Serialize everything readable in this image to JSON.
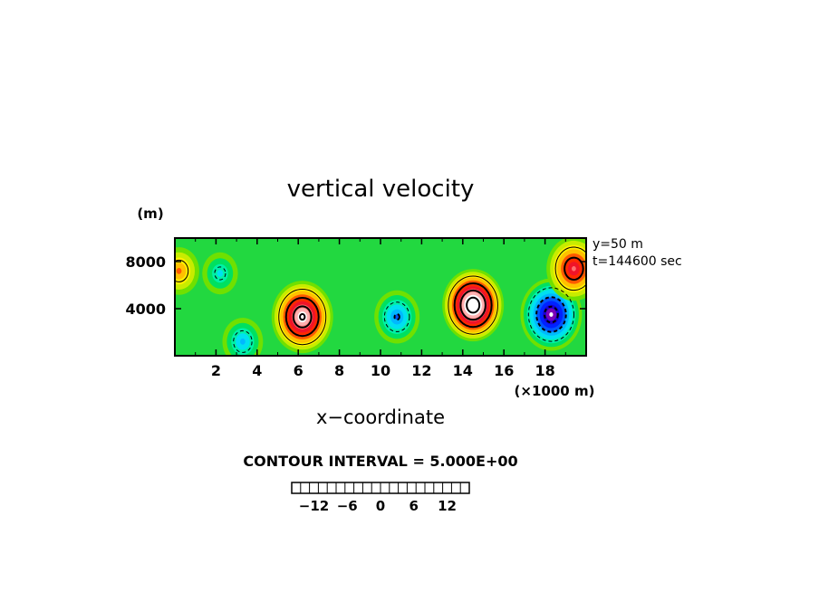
{
  "chart_data": {
    "type": "heatmap",
    "title": "vertical velocity",
    "xlabel": "x−coordinate",
    "x_unit": "(×1000 m)",
    "y_unit": "(m)",
    "annotations": [
      "y=50 m",
      "t=144600 sec"
    ],
    "contour_interval_label": "CONTOUR INTERVAL = 5.000E+00",
    "xlim": [
      0,
      20
    ],
    "ylim": [
      0,
      10000
    ],
    "x_ticks": [
      2,
      4,
      6,
      8,
      10,
      12,
      14,
      16,
      18
    ],
    "x_tick_labels": [
      "2",
      "4",
      "6",
      "8",
      "10",
      "12",
      "14",
      "16",
      "18"
    ],
    "y_ticks": [
      4000,
      8000
    ],
    "y_tick_labels": [
      "4000",
      "8000"
    ],
    "colorbar": {
      "range": [
        -16,
        16
      ],
      "tick_values": [
        -12,
        -6,
        0,
        6,
        12
      ],
      "tick_labels": [
        "−12",
        "−6",
        "0",
        "6",
        "12"
      ],
      "colors": [
        "#7a00b8",
        "#1a00d4",
        "#0022ff",
        "#0055ff",
        "#0088ff",
        "#00b8ff",
        "#00e0f0",
        "#00f0a8",
        "#00e060",
        "#10d020",
        "#70e000",
        "#c8ec00",
        "#fff000",
        "#ffc000",
        "#ff9000",
        "#ff5a00",
        "#ff2a00",
        "#f01428",
        "#ff7070",
        "#ffb0b0"
      ]
    },
    "features": [
      {
        "label": "updraft",
        "x": 6.2,
        "y": 3300,
        "peak": 20
      },
      {
        "label": "updraft",
        "x": 14.5,
        "y": 4300,
        "peak": 24
      },
      {
        "label": "downdraft",
        "x": 10.8,
        "y": 3300,
        "peak": -10
      },
      {
        "label": "downdraft",
        "x": 18.3,
        "y": 3500,
        "peak": -18
      },
      {
        "label": "downdraft",
        "x": 2.2,
        "y": 7000,
        "peak": -6
      },
      {
        "label": "downdraft",
        "x": 3.3,
        "y": 1200,
        "peak": -8
      },
      {
        "label": "updraft",
        "x": 19.4,
        "y": 7400,
        "peak": 14
      },
      {
        "label": "updraft",
        "x": 0.2,
        "y": 7200,
        "peak": 8
      }
    ]
  }
}
